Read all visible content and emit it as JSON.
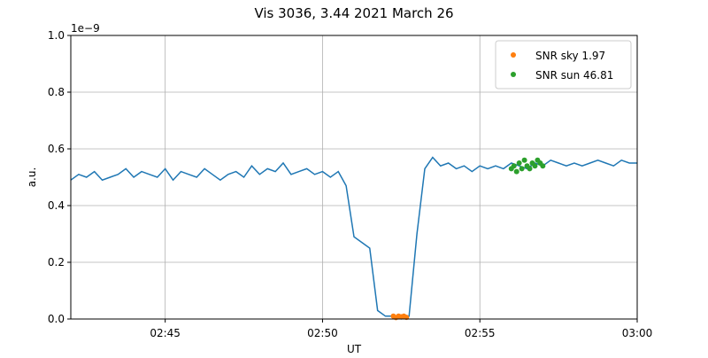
{
  "chart_data": {
    "type": "line",
    "title": "Vis 3036, 3.44 2021 March 26",
    "xlabel": "UT",
    "ylabel": "a.u.",
    "y_offset_label": "1e−9",
    "xlim": [
      "02:42:00",
      "03:00:00"
    ],
    "xticks": [
      {
        "value": "02:45:00",
        "label": "02:45"
      },
      {
        "value": "02:50:00",
        "label": "02:50"
      },
      {
        "value": "02:55:00",
        "label": "02:55"
      },
      {
        "value": "03:00:00",
        "label": "03:00"
      }
    ],
    "ylim": [
      0,
      1
    ],
    "yticks": [
      {
        "value": 0,
        "label": "0.0"
      },
      0.2,
      0.4,
      0.6,
      0.8,
      {
        "value": 1,
        "label": "1.0"
      }
    ],
    "grid": true,
    "legend": "upper right",
    "series": [
      {
        "type": "line",
        "color": "#1f77b4",
        "x": [
          "02:42:00",
          "02:42:15",
          "02:42:30",
          "02:42:45",
          "02:43:00",
          "02:43:15",
          "02:43:30",
          "02:43:45",
          "02:44:00",
          "02:44:15",
          "02:44:30",
          "02:44:45",
          "02:45:00",
          "02:45:15",
          "02:45:30",
          "02:45:45",
          "02:46:00",
          "02:46:15",
          "02:46:30",
          "02:46:45",
          "02:47:00",
          "02:47:15",
          "02:47:30",
          "02:47:45",
          "02:48:00",
          "02:48:15",
          "02:48:30",
          "02:48:45",
          "02:49:00",
          "02:49:15",
          "02:49:30",
          "02:49:45",
          "02:50:00",
          "02:50:15",
          "02:50:30",
          "02:50:45",
          "02:51:00",
          "02:51:15",
          "02:51:30",
          "02:51:45",
          "02:52:00",
          "02:52:15",
          "02:52:30",
          "02:52:45",
          "02:53:00",
          "02:53:15",
          "02:53:30",
          "02:53:45",
          "02:54:00",
          "02:54:15",
          "02:54:30",
          "02:54:45",
          "02:55:00",
          "02:55:15",
          "02:55:30",
          "02:55:45",
          "02:56:00",
          "02:56:15",
          "02:56:30",
          "02:56:45",
          "02:57:00",
          "02:57:15",
          "02:57:30",
          "02:57:45",
          "02:58:00",
          "02:58:15",
          "02:58:30",
          "02:58:45",
          "02:59:00",
          "02:59:15",
          "02:59:30",
          "02:59:45",
          "03:00:00"
        ],
        "values": [
          0.49,
          0.51,
          0.5,
          0.52,
          0.49,
          0.5,
          0.51,
          0.53,
          0.5,
          0.52,
          0.51,
          0.5,
          0.53,
          0.49,
          0.52,
          0.51,
          0.5,
          0.53,
          0.51,
          0.49,
          0.51,
          0.52,
          0.5,
          0.54,
          0.51,
          0.53,
          0.52,
          0.55,
          0.51,
          0.52,
          0.53,
          0.51,
          0.52,
          0.5,
          0.52,
          0.47,
          0.29,
          0.27,
          0.25,
          0.03,
          0.01,
          0.01,
          0.0,
          0.01,
          0.3,
          0.53,
          0.57,
          0.54,
          0.55,
          0.53,
          0.54,
          0.52,
          0.54,
          0.53,
          0.54,
          0.53,
          0.55,
          0.54,
          0.53,
          0.55,
          0.54,
          0.56,
          0.55,
          0.54,
          0.55,
          0.54,
          0.55,
          0.56,
          0.55,
          0.54,
          0.56,
          0.55,
          0.55
        ]
      },
      {
        "type": "scatter",
        "name": "SNR sky 1.97",
        "color": "#ff7f0e",
        "x": [
          "02:52:15",
          "02:52:20",
          "02:52:25",
          "02:52:30",
          "02:52:35",
          "02:52:40"
        ],
        "values": [
          0.01,
          0.005,
          0.01,
          0.008,
          0.01,
          0.006
        ]
      },
      {
        "type": "scatter",
        "name": "SNR sun 46.81",
        "color": "#2ca02c",
        "x": [
          "02:56:00",
          "02:56:05",
          "02:56:10",
          "02:56:15",
          "02:56:20",
          "02:56:25",
          "02:56:30",
          "02:56:35",
          "02:56:40",
          "02:56:45",
          "02:56:50",
          "02:56:55",
          "02:57:00"
        ],
        "values": [
          0.53,
          0.54,
          0.52,
          0.55,
          0.53,
          0.56,
          0.54,
          0.53,
          0.55,
          0.54,
          0.56,
          0.55,
          0.54
        ]
      }
    ]
  }
}
